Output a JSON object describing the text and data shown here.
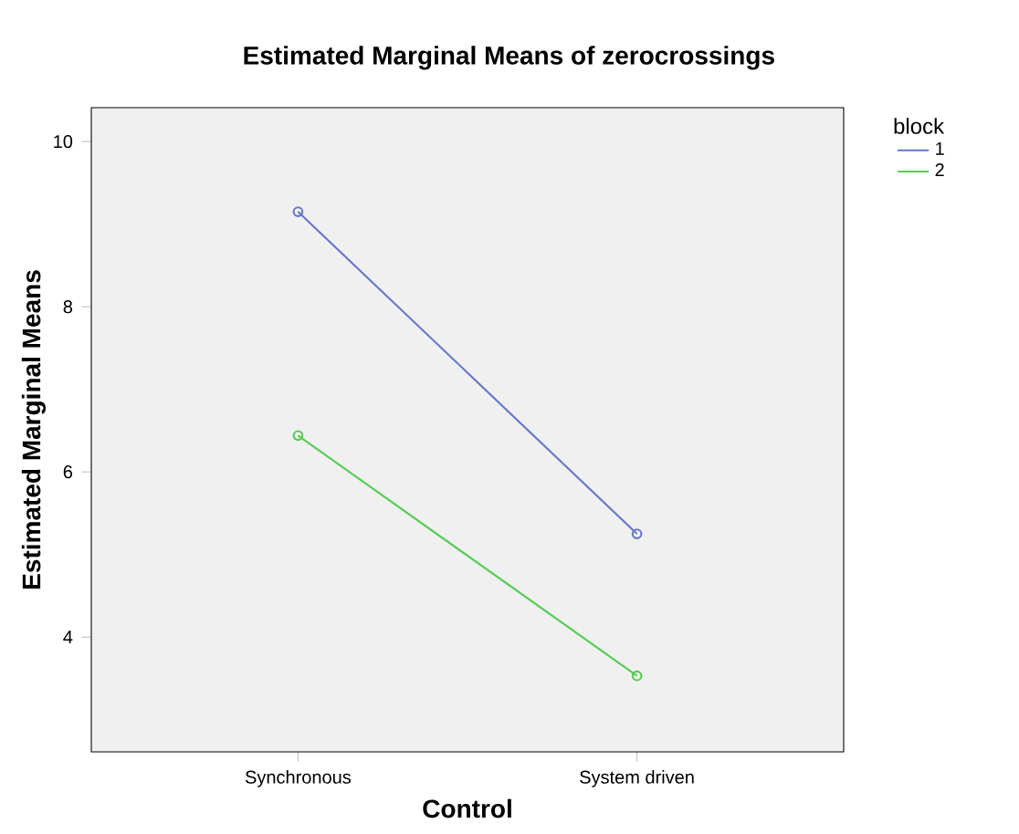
{
  "chart_data": {
    "type": "line",
    "title": "Estimated Marginal Means of zerocrossings",
    "xlabel": "Control",
    "ylabel": "Estimated Marginal Means",
    "categories": [
      "Synchronous",
      "System driven"
    ],
    "series": [
      {
        "name": "1",
        "color": "#6677c8",
        "values": [
          9.15,
          5.25
        ]
      },
      {
        "name": "2",
        "color": "#55cc55",
        "values": [
          6.44,
          3.53
        ]
      }
    ],
    "ylim": [
      2.61,
      10.41
    ],
    "yticks": [
      4,
      6,
      8,
      10
    ],
    "legend": "top right",
    "legend_title": "block",
    "marker": "circle",
    "line_style": "solid",
    "grid": false
  }
}
